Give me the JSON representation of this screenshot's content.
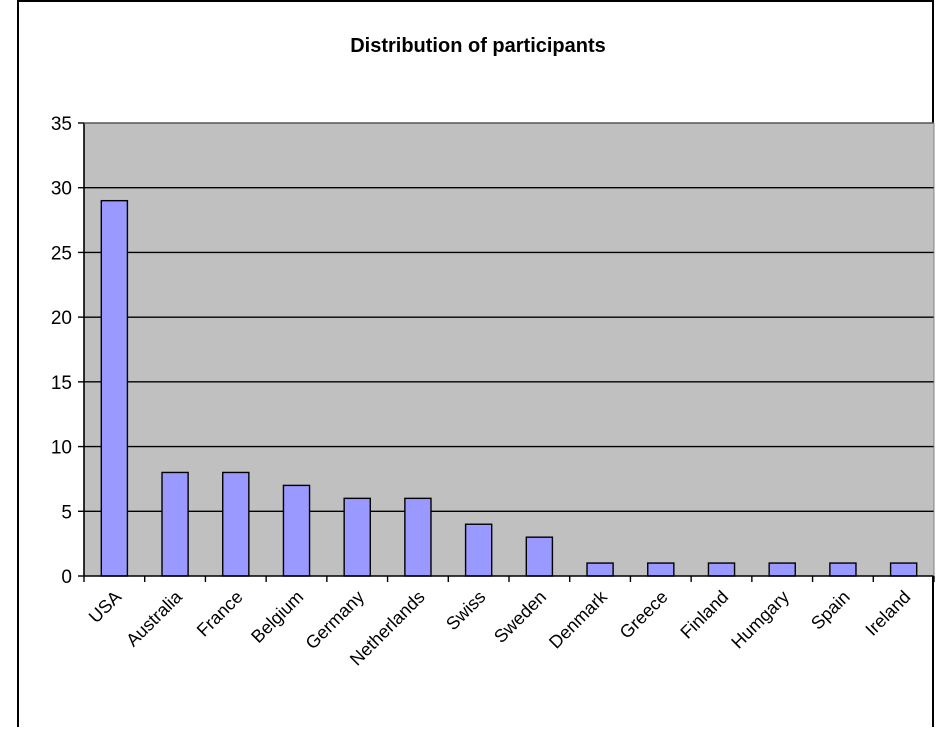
{
  "chart_data": {
    "type": "bar",
    "title": "Distribution of participants",
    "categories": [
      "USA",
      "Australia",
      "France",
      "Belgium",
      "Germany",
      "Netherlands",
      "Swiss",
      "Sweden",
      "Denmark",
      "Greece",
      "Finland",
      "Humgary",
      "Spain",
      "Ireland"
    ],
    "values": [
      29,
      8,
      8,
      7,
      6,
      6,
      4,
      3,
      1,
      1,
      1,
      1,
      1,
      1
    ],
    "ylim": [
      0,
      35
    ],
    "yticks": [
      0,
      5,
      10,
      15,
      20,
      25,
      30,
      35
    ],
    "xlabel": "",
    "ylabel": "",
    "grid": true,
    "legend": "none",
    "colors": {
      "plot_background": "#c0c0c0",
      "bar_fill": "#9999ff",
      "bar_stroke": "#000000",
      "grid": "#000000"
    }
  }
}
